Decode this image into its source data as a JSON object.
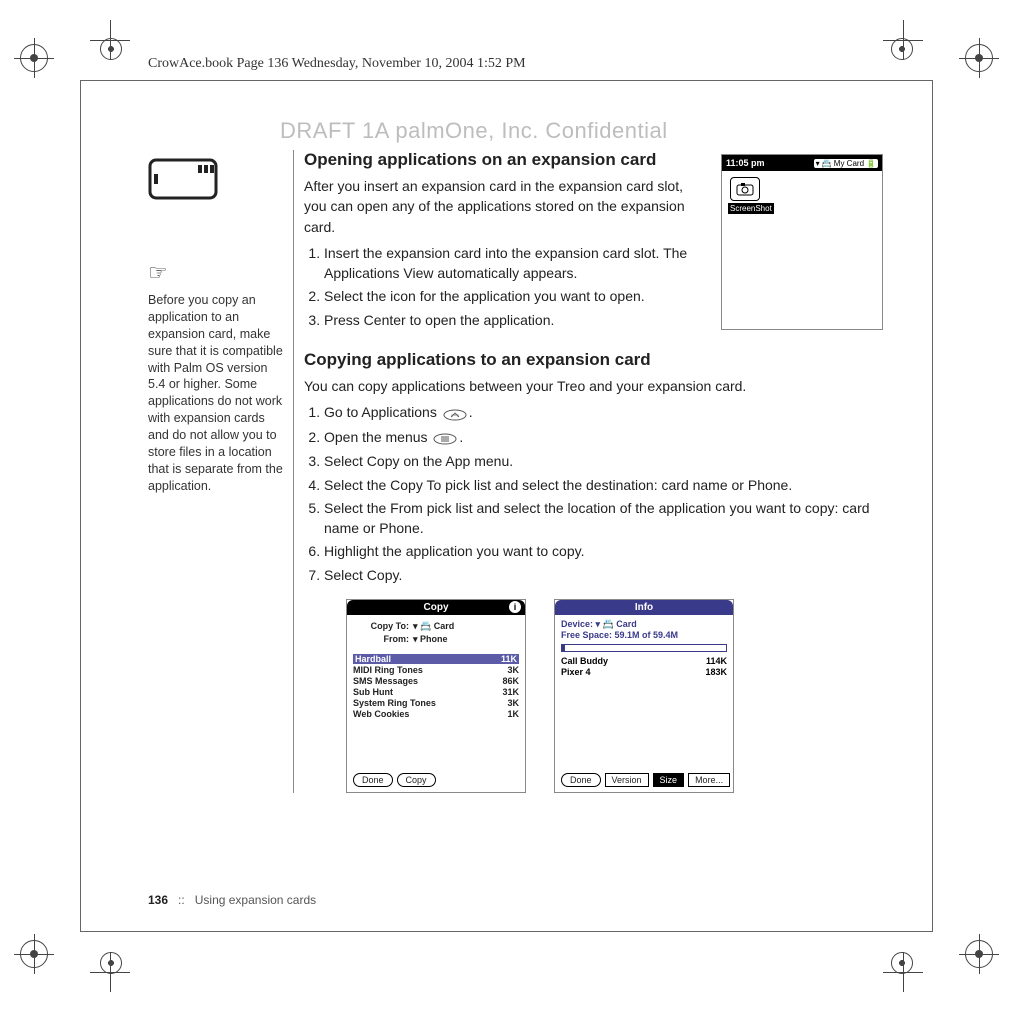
{
  "header": "CrowAce.book  Page 136  Wednesday, November 10, 2004  1:52 PM",
  "watermark": "DRAFT 1A  palmOne, Inc.   Confidential",
  "sidebar": {
    "tip": "Before you copy an application to an expansion card, make sure that it is compatible with Palm OS version 5.4 or higher. Some applications do not work with expansion cards and do not allow you to store files in a location that is separate from the application."
  },
  "section1": {
    "title": "Opening applications on an expansion card",
    "intro": "After you insert an expansion card in the expansion card slot, you can open any of the applications stored on the expansion card.",
    "steps": [
      "Insert the expansion card into the expansion card slot. The Applications View automatically appears.",
      "Select the icon for the application you want to open.",
      "Press Center to open the application."
    ]
  },
  "section2": {
    "title": "Copying applications to an expansion card",
    "intro": "You can copy applications between your Treo and your expansion card.",
    "steps": [
      "Go to Applications",
      "Open the menus",
      "Select Copy on the App menu.",
      "Select the Copy To pick list and select the destination: card name or Phone.",
      "Select the From pick list and select the location of the application you want to copy: card name or Phone.",
      "Highlight the application you want to copy.",
      "Select Copy."
    ]
  },
  "screenshot1": {
    "time": "11:05 pm",
    "category": "My Card",
    "icon_label": "ScreenShot"
  },
  "copy_dialog": {
    "title": "Copy",
    "copy_to_label": "Copy To:",
    "copy_to_value": "▾ 📇 Card",
    "from_label": "From:",
    "from_value": "▾ Phone",
    "rows": [
      {
        "name": "Hardball",
        "size": "11K",
        "hl": true
      },
      {
        "name": "MIDI Ring Tones",
        "size": "3K"
      },
      {
        "name": "SMS Messages",
        "size": "86K"
      },
      {
        "name": "Sub Hunt",
        "size": "31K"
      },
      {
        "name": "System Ring Tones",
        "size": "3K"
      },
      {
        "name": "Web Cookies",
        "size": "1K"
      }
    ],
    "btn_done": "Done",
    "btn_copy": "Copy"
  },
  "info_dialog": {
    "title": "Info",
    "device_label": "Device:",
    "device_value": "▾ 📇 Card",
    "free_space": "Free Space: 59.1M of 59.4M",
    "rows": [
      {
        "name": "Call Buddy",
        "size": "114K"
      },
      {
        "name": "Pixer 4",
        "size": "183K"
      }
    ],
    "btn_done": "Done",
    "btn_version": "Version",
    "btn_size": "Size",
    "btn_more": "More..."
  },
  "footer": {
    "page": "136",
    "sep": "::",
    "chapter": "Using expansion cards"
  },
  "colors": {
    "watermark": "#bdbdbd",
    "titlebar_blue": "#3a3a8a",
    "highlight": "#5b5ba8"
  }
}
